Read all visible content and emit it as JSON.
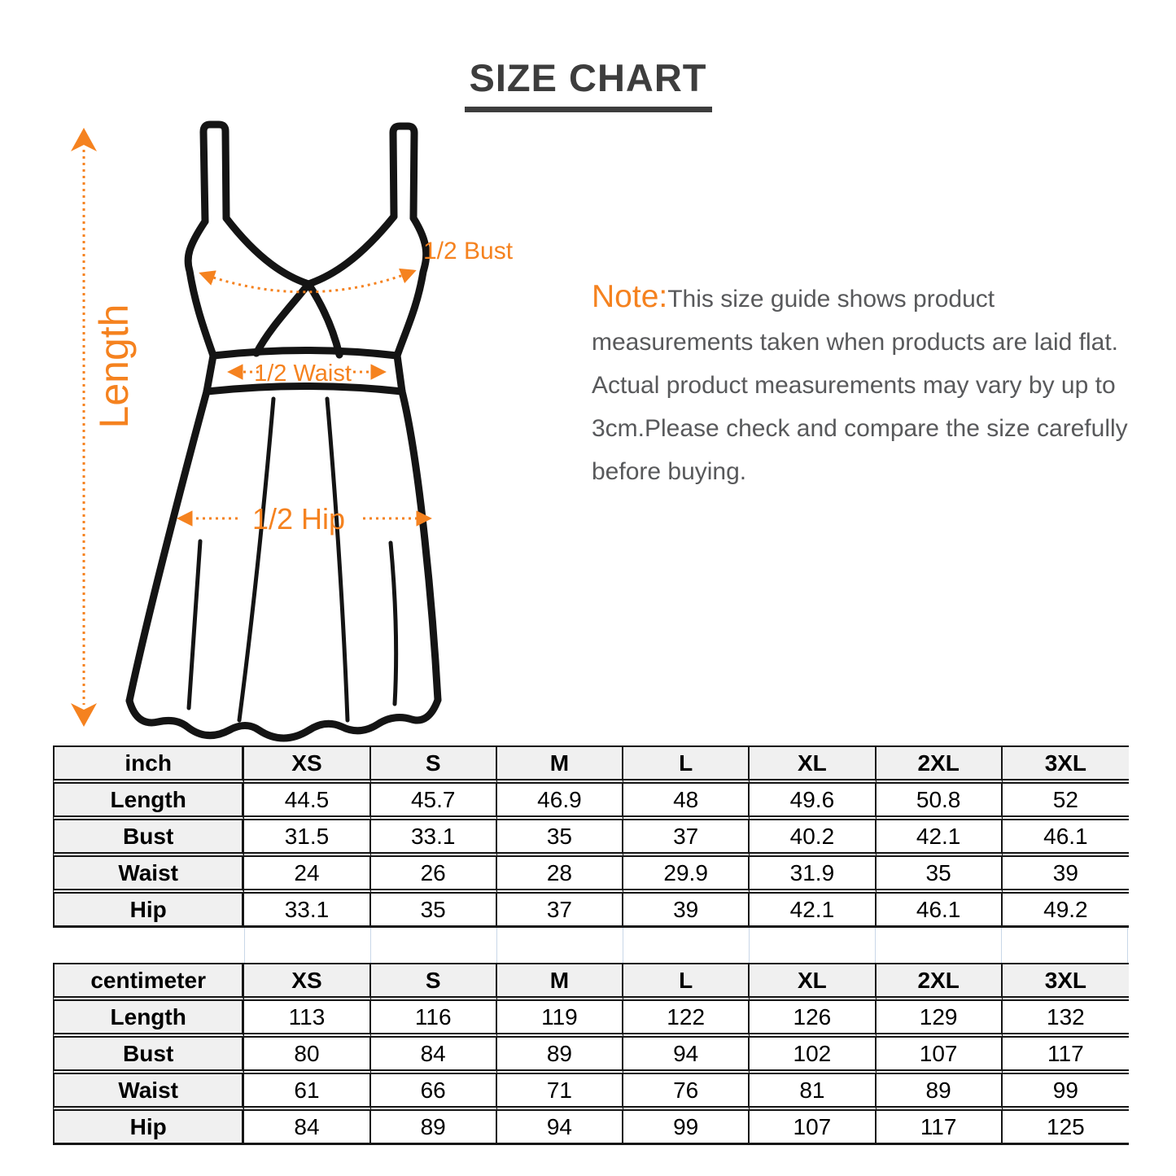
{
  "title": "SIZE CHART",
  "accent_color": "#F5821F",
  "diagram": {
    "length_label": "Length",
    "bust_label": "1/2 Bust",
    "waist_label": "1/2 Waist",
    "hip_label": "1/2 Hip"
  },
  "note": {
    "prefix": "Note:",
    "body": "This size guide shows product measurements taken when products are laid flat. Actual product measurements may vary by up to 3cm.Please check and compare the size carefully before buying."
  },
  "tables": [
    {
      "unit_label": "inch",
      "sizes": [
        "XS",
        "S",
        "M",
        "L",
        "XL",
        "2XL",
        "3XL"
      ],
      "rows": [
        {
          "label": "Length",
          "values": [
            "44.5",
            "45.7",
            "46.9",
            "48",
            "49.6",
            "50.8",
            "52"
          ]
        },
        {
          "label": "Bust",
          "values": [
            "31.5",
            "33.1",
            "35",
            "37",
            "40.2",
            "42.1",
            "46.1"
          ]
        },
        {
          "label": "Waist",
          "values": [
            "24",
            "26",
            "28",
            "29.9",
            "31.9",
            "35",
            "39"
          ]
        },
        {
          "label": "Hip",
          "values": [
            "33.1",
            "35",
            "37",
            "39",
            "42.1",
            "46.1",
            "49.2"
          ]
        }
      ]
    },
    {
      "unit_label": "centimeter",
      "sizes": [
        "XS",
        "S",
        "M",
        "L",
        "XL",
        "2XL",
        "3XL"
      ],
      "rows": [
        {
          "label": "Length",
          "values": [
            "113",
            "116",
            "119",
            "122",
            "126",
            "129",
            "132"
          ]
        },
        {
          "label": "Bust",
          "values": [
            "80",
            "84",
            "89",
            "94",
            "102",
            "107",
            "117"
          ]
        },
        {
          "label": "Waist",
          "values": [
            "61",
            "66",
            "71",
            "76",
            "81",
            "89",
            "99"
          ]
        },
        {
          "label": "Hip",
          "values": [
            "84",
            "89",
            "94",
            "99",
            "107",
            "117",
            "125"
          ]
        }
      ]
    }
  ]
}
